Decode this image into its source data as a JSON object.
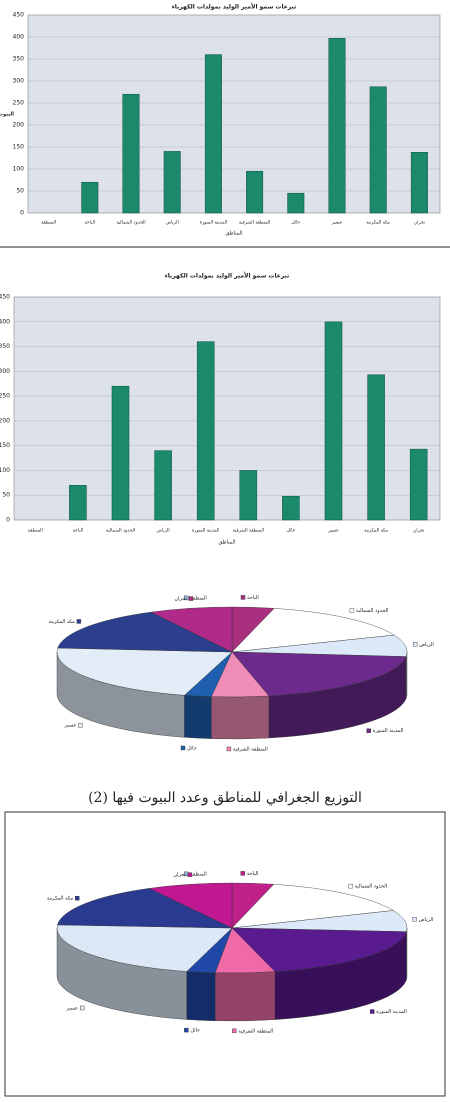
{
  "chart_data": [
    {
      "type": "bar",
      "title": "تبرعات سمو الأمير الوليد بمولدات الكهرباء",
      "x_label": "المناطق",
      "y_label": "البيوت",
      "categories": [
        "المنطقة",
        "الباحة",
        "الحدود الشمالية",
        "الرياض",
        "المدينة المنورة",
        "المنطقة الشرقية",
        "حائل",
        "عسير",
        "مكة المكرمة",
        "نجران"
      ],
      "values": [
        0,
        70,
        270,
        140,
        360,
        95,
        45,
        397,
        287,
        138
      ],
      "color": "#1b8a6b",
      "ylim": [
        0,
        450
      ],
      "yticks": [
        0,
        50,
        100,
        150,
        200,
        250,
        300,
        350,
        400,
        450
      ]
    },
    {
      "type": "bar",
      "title": "تبرعات سمو الأمير الوليد بمولدات الكهرباء",
      "x_label": "المناطق",
      "categories": [
        "المنطقة",
        "الباحة",
        "الحدود الشمالية",
        "الرياض",
        "المدينة المنورة",
        "المنطقة الشرقية",
        "حائل",
        "عسير",
        "مكة المكرمة",
        "نجران"
      ],
      "values": [
        0,
        70,
        270,
        140,
        360,
        100,
        48,
        400,
        293,
        143
      ],
      "color": "#1b8a6b",
      "ylim": [
        0,
        450
      ],
      "yticks": [
        0,
        50,
        100,
        150,
        200,
        250,
        300,
        350,
        400,
        450
      ]
    },
    {
      "type": "pie",
      "categories": [
        "المنطقة",
        "الباحة",
        "الحدود الشمالية",
        "الرياض",
        "المدينة المنورة",
        "المنطقة الشرقية",
        "حائل",
        "عسير",
        "مكة المكرمة",
        "نجران"
      ],
      "values": [
        0,
        70,
        270,
        140,
        360,
        95,
        45,
        397,
        287,
        138
      ],
      "colors": [
        "#9ab8e0",
        "#a8307e",
        "#ffffff",
        "#dce9f8",
        "#6b2a8c",
        "#f08cb8",
        "#1f5fb0",
        "#e2edf8",
        "#2c3f8c",
        "#b02a8a"
      ]
    },
    {
      "type": "pie",
      "title": "التوزيع الجغرافي للمناطق وعدد البيوت فيها (2)",
      "categories": [
        "المنطقة",
        "الباحة",
        "الحدود الشمالية",
        "الرياض",
        "المدينة المنورة",
        "المنطقة الشرقية",
        "حائل",
        "عسير",
        "مكة المكرمة",
        "نجران"
      ],
      "values": [
        0,
        70,
        270,
        140,
        360,
        100,
        48,
        400,
        293,
        143
      ],
      "colors": [
        "#9ab8e0",
        "#c0208a",
        "#ffffff",
        "#dce9f8",
        "#5a1a90",
        "#f06aa8",
        "#2048a8",
        "#dce8f6",
        "#2a3a90",
        "#c01890"
      ]
    }
  ]
}
